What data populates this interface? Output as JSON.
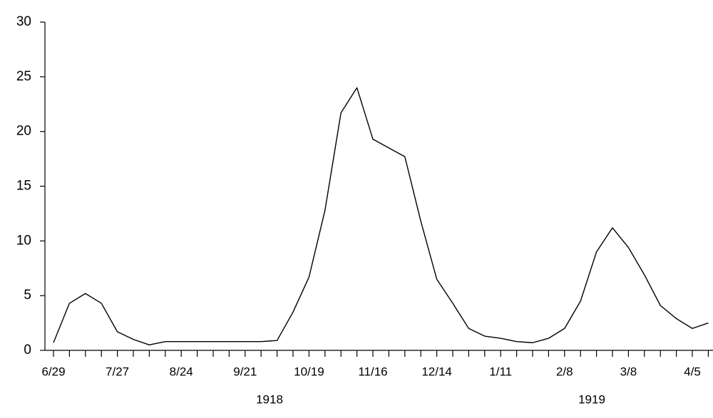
{
  "chart_data": {
    "type": "line",
    "categories": [
      "6/29",
      null,
      null,
      null,
      "7/27",
      null,
      null,
      null,
      "8/24",
      null,
      null,
      null,
      "9/21",
      null,
      null,
      null,
      "10/19",
      null,
      null,
      null,
      "11/16",
      null,
      null,
      null,
      "12/14",
      null,
      null,
      null,
      "1/11",
      null,
      null,
      null,
      "2/8",
      null,
      null,
      null,
      "3/8",
      null,
      null,
      null,
      "4/5",
      null
    ],
    "values": [
      0.7,
      4.3,
      5.2,
      4.3,
      1.7,
      1.0,
      0.5,
      0.8,
      0.8,
      0.8,
      0.8,
      0.8,
      0.8,
      0.8,
      0.9,
      3.5,
      6.7,
      12.8,
      21.7,
      24.0,
      19.3,
      18.5,
      17.7,
      11.8,
      6.5,
      4.3,
      2.0,
      1.3,
      1.1,
      0.8,
      0.7,
      1.1,
      2.0,
      4.5,
      9.0,
      11.2,
      9.4,
      6.9,
      4.1,
      2.9,
      2.0,
      2.5
    ],
    "color": "#000000",
    "ylim": [
      0,
      30
    ],
    "yticks": [
      0,
      5,
      10,
      15,
      20,
      25,
      30
    ],
    "grid": false,
    "annotations": [
      "1918",
      "1919"
    ]
  }
}
